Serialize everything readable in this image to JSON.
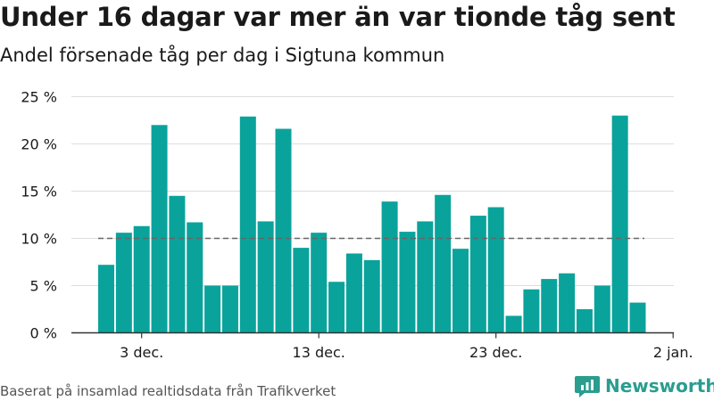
{
  "title": "Under 16 dagar var mer än var tionde tåg sent",
  "subtitle": "Andel försenade tåg per dag i Sigtuna kommun",
  "footer": "Baserat på insamlad realtidsdata från Trafikverket",
  "brand": "Newsworthy",
  "colors": {
    "bar": "#0aa39b",
    "grid": "#dddddd",
    "reference": "#666666",
    "axis": "#333333",
    "brand": "#2a9d8f"
  },
  "chart_data": {
    "type": "bar",
    "title": "Under 16 dagar var mer än var tionde tåg sent",
    "subtitle": "Andel försenade tåg per dag i Sigtuna kommun",
    "xlabel": "",
    "ylabel": "",
    "x_ticks": [
      "3 dec.",
      "13 dec.",
      "23 dec.",
      "2 jan."
    ],
    "y_ticks": [
      "0 %",
      "5 %",
      "10 %",
      "15 %",
      "20 %",
      "25 %"
    ],
    "ylim": [
      0,
      25
    ],
    "grid": true,
    "reference_line": 10,
    "categories": [
      "2020-12-01",
      "2020-12-02",
      "2020-12-03",
      "2020-12-04",
      "2020-12-05",
      "2020-12-06",
      "2020-12-07",
      "2020-12-08",
      "2020-12-09",
      "2020-12-10",
      "2020-12-11",
      "2020-12-12",
      "2020-12-13",
      "2020-12-14",
      "2020-12-15",
      "2020-12-16",
      "2020-12-17",
      "2020-12-18",
      "2020-12-19",
      "2020-12-20",
      "2020-12-21",
      "2020-12-22",
      "2020-12-23",
      "2020-12-24",
      "2020-12-25",
      "2020-12-26",
      "2020-12-27",
      "2020-12-28",
      "2020-12-29",
      "2020-12-30",
      "2020-12-31"
    ],
    "values": [
      7.2,
      10.6,
      11.3,
      22.0,
      14.5,
      11.7,
      5.0,
      5.0,
      22.9,
      11.8,
      21.6,
      9.0,
      10.6,
      5.4,
      8.4,
      7.7,
      13.9,
      10.7,
      11.8,
      14.6,
      8.9,
      12.4,
      13.3,
      1.8,
      4.6,
      5.7,
      6.3,
      2.5,
      5.0,
      23.0,
      3.2
    ]
  }
}
